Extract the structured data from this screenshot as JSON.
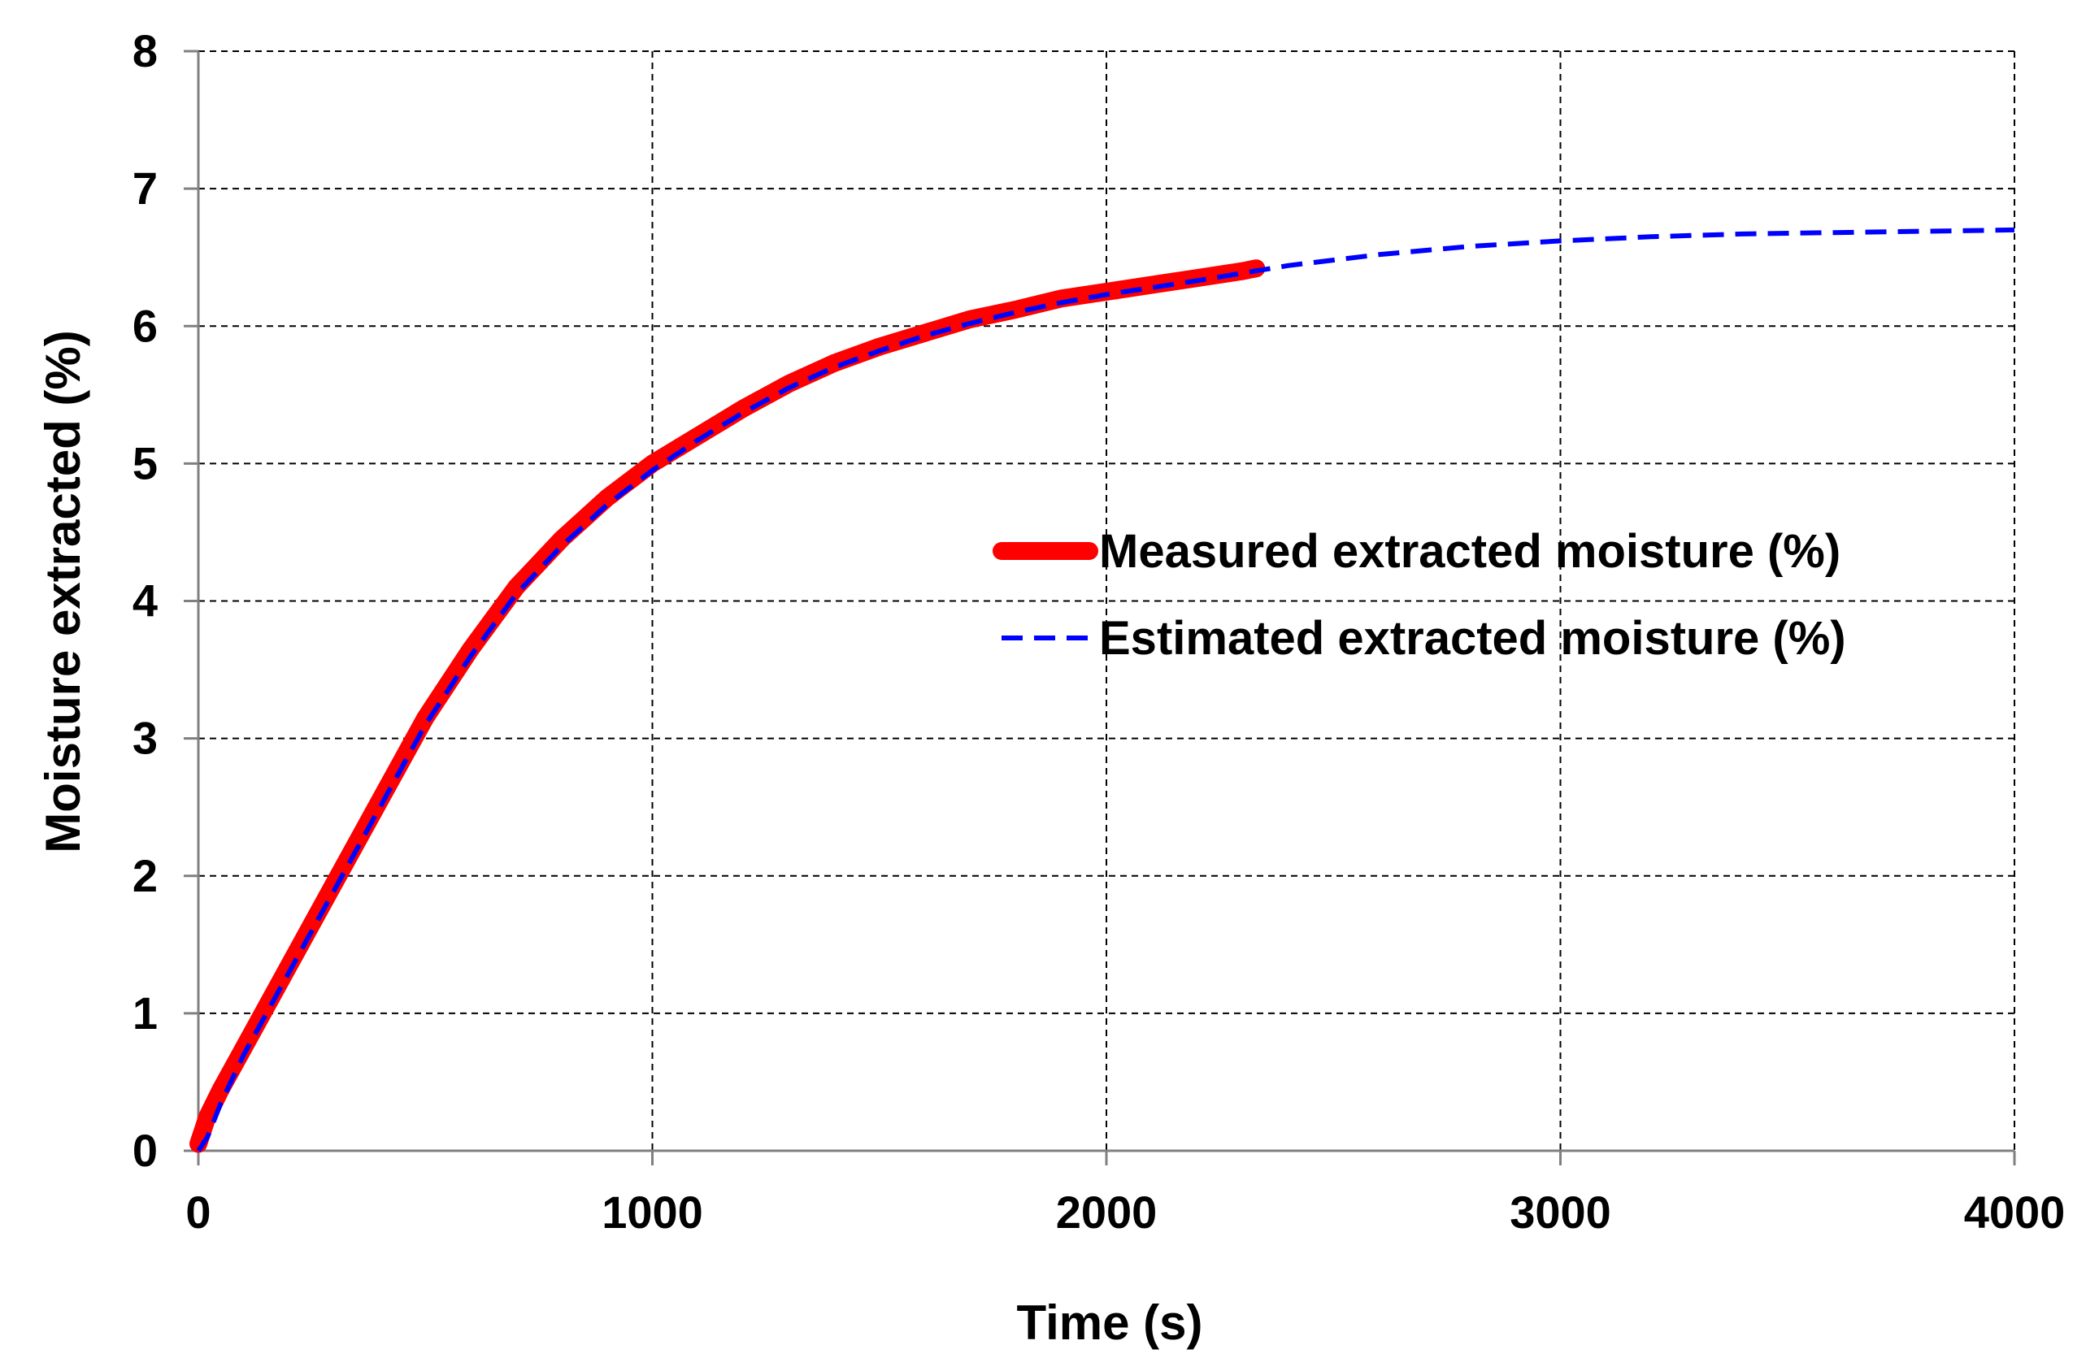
{
  "chart_data": {
    "type": "line",
    "title": "",
    "xlabel": "Time (s)",
    "ylabel": "Moisture extracted (%)",
    "xlim": [
      0,
      4000
    ],
    "ylim": [
      0,
      8
    ],
    "xticks": [
      0,
      1000,
      2000,
      3000,
      4000
    ],
    "yticks": [
      0,
      1,
      2,
      3,
      4,
      5,
      6,
      7,
      8
    ],
    "grid": true,
    "legend_position": "center-right",
    "series": [
      {
        "name": "Measured extracted moisture (%)",
        "color": "#ff0000",
        "style": "solid-thick",
        "x": [
          0,
          20,
          50,
          100,
          150,
          200,
          300,
          400,
          500,
          600,
          700,
          800,
          900,
          1000,
          1100,
          1200,
          1300,
          1400,
          1500,
          1600,
          1700,
          1800,
          1900,
          2000,
          2100,
          2200,
          2300,
          2330
        ],
        "y": [
          0.05,
          0.25,
          0.45,
          0.75,
          1.05,
          1.35,
          1.95,
          2.55,
          3.15,
          3.65,
          4.1,
          4.45,
          4.75,
          5.0,
          5.2,
          5.4,
          5.58,
          5.73,
          5.85,
          5.95,
          6.05,
          6.12,
          6.2,
          6.25,
          6.3,
          6.35,
          6.4,
          6.42
        ]
      },
      {
        "name": "Estimated extracted moisture (%)",
        "color": "#0000ff",
        "style": "dashed",
        "x": [
          0,
          20,
          50,
          100,
          150,
          200,
          300,
          400,
          500,
          600,
          700,
          800,
          900,
          1000,
          1100,
          1200,
          1300,
          1400,
          1500,
          1600,
          1700,
          1800,
          1900,
          2000,
          2200,
          2400,
          2600,
          2800,
          3000,
          3200,
          3400,
          3600,
          3800,
          4000
        ],
        "y": [
          0.0,
          0.1,
          0.35,
          0.7,
          1.0,
          1.3,
          1.9,
          2.5,
          3.1,
          3.6,
          4.05,
          4.4,
          4.7,
          4.95,
          5.17,
          5.37,
          5.55,
          5.7,
          5.82,
          5.93,
          6.02,
          6.1,
          6.17,
          6.23,
          6.33,
          6.44,
          6.52,
          6.58,
          6.62,
          6.65,
          6.67,
          6.68,
          6.69,
          6.7
        ]
      }
    ]
  }
}
